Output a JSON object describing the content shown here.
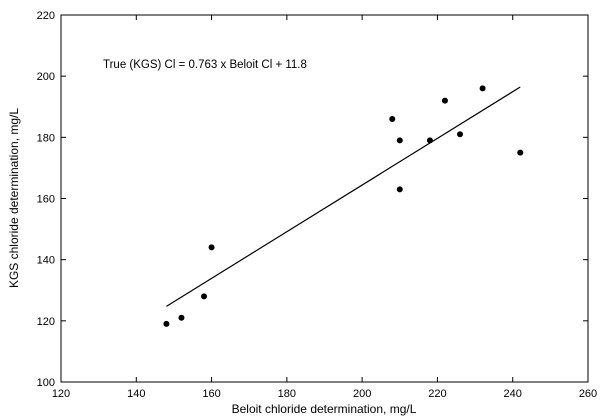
{
  "chart_data": {
    "type": "scatter",
    "title": "",
    "xlabel": "Beloit chloride determination, mg/L",
    "ylabel": "KGS chloride determination, mg/L",
    "xlim": [
      120,
      260
    ],
    "ylim": [
      100,
      220
    ],
    "x_ticks": [
      120,
      140,
      160,
      180,
      200,
      220,
      240,
      260
    ],
    "y_ticks": [
      100,
      120,
      140,
      160,
      180,
      200,
      220
    ],
    "grid": false,
    "legend": "none",
    "annotation": "True (KGS) Cl = 0.763 x Beloit Cl + 11.8",
    "series": [
      {
        "points": [
          {
            "x": 148,
            "y": 119
          },
          {
            "x": 152,
            "y": 121
          },
          {
            "x": 158,
            "y": 128
          },
          {
            "x": 160,
            "y": 144
          },
          {
            "x": 208,
            "y": 186
          },
          {
            "x": 210,
            "y": 179
          },
          {
            "x": 210,
            "y": 163
          },
          {
            "x": 218,
            "y": 179
          },
          {
            "x": 222,
            "y": 192
          },
          {
            "x": 226,
            "y": 181
          },
          {
            "x": 232,
            "y": 196
          },
          {
            "x": 242,
            "y": 175
          }
        ]
      }
    ],
    "fit_line": {
      "slope": 0.763,
      "intercept": 11.8,
      "x_range": [
        148,
        242
      ]
    },
    "marker_color": "#000000",
    "line_color": "#000000"
  }
}
